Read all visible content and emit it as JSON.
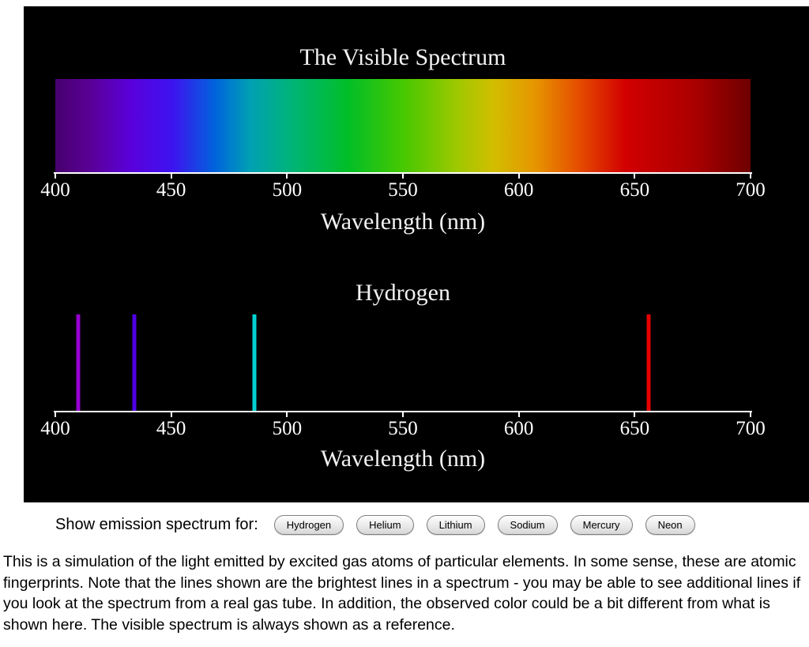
{
  "controls": {
    "label": "Show emission spectrum for:",
    "buttons": [
      "Hydrogen",
      "Helium",
      "Lithium",
      "Sodium",
      "Mercury",
      "Neon"
    ]
  },
  "description": "This is a simulation of the light emitted by excited gas atoms of particular elements. In some sense, these are atomic fingerprints. Note that the lines shown are the brightest lines in a spectrum - you may be able to see additional lines if you look at the spectrum from a real gas tube. In addition, the observed color could be a bit different from what is shown here. The visible spectrum is always shown as a reference.",
  "colors": {
    "panel_background": "#000000",
    "axis": "#ffffff",
    "text_on_panel": "#f2f2f2"
  },
  "chart_data": [
    {
      "type": "heatmap",
      "title": "The Visible Spectrum",
      "xlabel": "Wavelength (nm)",
      "xlim": [
        400,
        700
      ],
      "xticks": [
        "400",
        "450",
        "500",
        "550",
        "600",
        "650",
        "700"
      ],
      "gradient_stops": [
        {
          "pos": 0,
          "color": "#47006e"
        },
        {
          "pos": 5,
          "color": "#5a0096"
        },
        {
          "pos": 11,
          "color": "#5a00dc"
        },
        {
          "pos": 17,
          "color": "#3c14f0"
        },
        {
          "pos": 23,
          "color": "#0064dc"
        },
        {
          "pos": 28,
          "color": "#00a0b4"
        },
        {
          "pos": 34,
          "color": "#00b478"
        },
        {
          "pos": 42,
          "color": "#00be28"
        },
        {
          "pos": 50,
          "color": "#46c800"
        },
        {
          "pos": 58,
          "color": "#a0c800"
        },
        {
          "pos": 63,
          "color": "#d2be00"
        },
        {
          "pos": 69,
          "color": "#e69600"
        },
        {
          "pos": 75,
          "color": "#e65000"
        },
        {
          "pos": 82,
          "color": "#d20000"
        },
        {
          "pos": 92,
          "color": "#aa0000"
        },
        {
          "pos": 100,
          "color": "#6e0000"
        }
      ]
    },
    {
      "type": "bar",
      "title": "Hydrogen",
      "xlabel": "Wavelength (nm)",
      "xlim": [
        400,
        700
      ],
      "xticks": [
        "400",
        "450",
        "500",
        "550",
        "600",
        "650",
        "700"
      ],
      "lines": [
        {
          "wavelength_nm": 410,
          "color": "#9600d2"
        },
        {
          "wavelength_nm": 434,
          "color": "#5000e6"
        },
        {
          "wavelength_nm": 486,
          "color": "#00d2d2"
        },
        {
          "wavelength_nm": 656,
          "color": "#e60000"
        }
      ]
    }
  ]
}
